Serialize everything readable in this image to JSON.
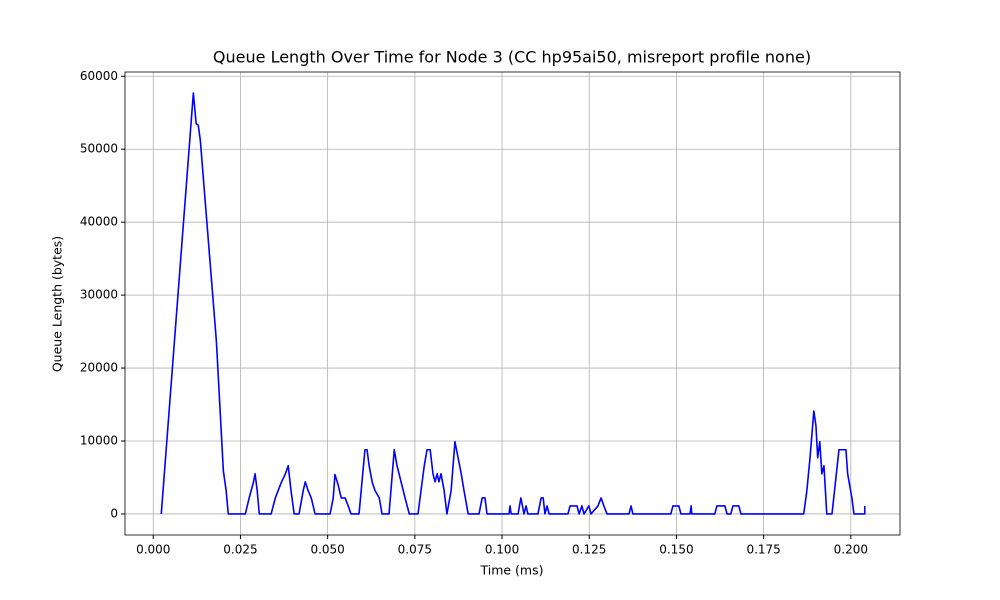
{
  "chart_data": {
    "type": "line",
    "title": "Queue Length Over Time for Node 3 (CC hp95ai50, misreport profile none)",
    "x_label": "Time (ms)",
    "y_label": "Queue Length (bytes)",
    "grid": true,
    "xlim": [
      -0.0081,
      0.2141
    ],
    "ylim": [
      -2885,
      60585
    ],
    "xticks": [
      {
        "value": 0,
        "label": "0.000"
      },
      {
        "value": 0.025,
        "label": "0.025"
      },
      {
        "value": 0.05,
        "label": "0.050"
      },
      {
        "value": 0.075,
        "label": "0.075"
      },
      {
        "value": 0.1,
        "label": "0.100"
      },
      {
        "value": 0.125,
        "label": "0.125"
      },
      {
        "value": 0.15,
        "label": "0.150"
      },
      {
        "value": 0.175,
        "label": "0.175"
      },
      {
        "value": 0.2,
        "label": "0.200"
      }
    ],
    "yticks": [
      0,
      10000,
      20000,
      30000,
      40000,
      50000,
      60000
    ],
    "series": [
      {
        "color": "#0000ff",
        "x": [
          0.0023,
          0.0115,
          0.0123,
          0.0129,
          0.0135,
          0.0181,
          0.0201,
          0.0209,
          0.0215,
          0.0264,
          0.0275,
          0.0287,
          0.0292,
          0.0298,
          0.0304,
          0.0338,
          0.035,
          0.0367,
          0.0378,
          0.0387,
          0.0395,
          0.0404,
          0.0418,
          0.043,
          0.0436,
          0.0444,
          0.0453,
          0.0464,
          0.0507,
          0.0516,
          0.0521,
          0.053,
          0.0539,
          0.055,
          0.0559,
          0.0567,
          0.059,
          0.0607,
          0.0613,
          0.0619,
          0.0628,
          0.0636,
          0.0648,
          0.0656,
          0.0676,
          0.0691,
          0.0699,
          0.0711,
          0.0722,
          0.0734,
          0.0759,
          0.0777,
          0.0785,
          0.0794,
          0.0802,
          0.0808,
          0.0814,
          0.0819,
          0.0825,
          0.0834,
          0.0842,
          0.0854,
          0.0865,
          0.0874,
          0.0883,
          0.0891,
          0.0903,
          0.0934,
          0.0943,
          0.0951,
          0.0957,
          0.102,
          0.1023,
          0.1026,
          0.1046,
          0.1054,
          0.1063,
          0.1069,
          0.1074,
          0.1103,
          0.1112,
          0.1118,
          0.1123,
          0.1129,
          0.1135,
          0.1189,
          0.1195,
          0.1215,
          0.1221,
          0.1229,
          0.1235,
          0.1249,
          0.1255,
          0.1275,
          0.1284,
          0.1292,
          0.1301,
          0.1364,
          0.137,
          0.1375,
          0.1484,
          0.149,
          0.1507,
          0.1513,
          0.1539,
          0.1542,
          0.1544,
          0.161,
          0.1616,
          0.1639,
          0.1645,
          0.1656,
          0.1662,
          0.1679,
          0.1685,
          0.1865,
          0.1874,
          0.1883,
          0.1894,
          0.19,
          0.1905,
          0.1911,
          0.1917,
          0.1923,
          0.1931,
          0.1946,
          0.1966,
          0.1986,
          0.1991,
          0.2003,
          0.2009,
          0.204,
          0.204
        ],
        "values": [
          0,
          57700,
          53500,
          53300,
          51200,
          23700,
          5900,
          3200,
          0,
          0,
          2200,
          4300,
          5500,
          3200,
          0,
          0,
          2200,
          4300,
          5400,
          6600,
          3200,
          0,
          0,
          3200,
          4400,
          3200,
          2200,
          0,
          0,
          2200,
          5400,
          4000,
          2200,
          2200,
          1100,
          0,
          0,
          8800,
          8800,
          6600,
          4300,
          3200,
          2200,
          0,
          0,
          8800,
          6600,
          4300,
          2200,
          0,
          0,
          6600,
          8800,
          8800,
          5500,
          4400,
          5500,
          4400,
          5500,
          3200,
          0,
          3200,
          9900,
          7700,
          5500,
          3200,
          0,
          0,
          2200,
          2200,
          0,
          0,
          1100,
          0,
          0,
          2200,
          0,
          1100,
          0,
          0,
          2200,
          2200,
          0,
          1100,
          0,
          0,
          1100,
          1100,
          0,
          1100,
          0,
          1100,
          0,
          1100,
          2200,
          1100,
          0,
          0,
          1100,
          0,
          0,
          1100,
          1100,
          0,
          0,
          1100,
          0,
          0,
          1100,
          1100,
          0,
          0,
          1100,
          1100,
          0,
          0,
          3200,
          7700,
          14100,
          12100,
          7700,
          9900,
          5500,
          6600,
          0,
          0,
          8800,
          8800,
          5500,
          2200,
          0,
          0,
          1100
        ]
      }
    ]
  }
}
